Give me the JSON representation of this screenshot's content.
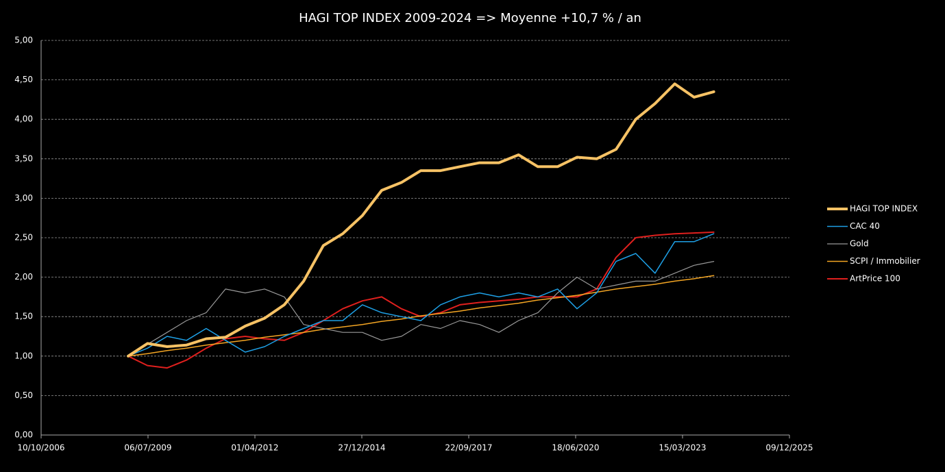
{
  "chart_data": {
    "type": "line",
    "title": "HAGI TOP INDEX 2009-2024 => Moyenne +10,7 % / an",
    "x": [
      "01/01/2009",
      "01/07/2009",
      "01/01/2010",
      "01/07/2010",
      "01/01/2011",
      "01/07/2011",
      "01/01/2012",
      "01/07/2012",
      "01/01/2013",
      "01/07/2013",
      "01/01/2014",
      "01/07/2014",
      "01/01/2015",
      "01/07/2015",
      "01/01/2016",
      "01/07/2016",
      "01/01/2017",
      "01/07/2017",
      "01/01/2018",
      "01/07/2018",
      "01/01/2019",
      "01/07/2019",
      "01/01/2020",
      "01/07/2020",
      "01/01/2021",
      "01/07/2021",
      "01/01/2022",
      "01/07/2022",
      "01/01/2023",
      "01/07/2023",
      "01/01/2024"
    ],
    "series": [
      {
        "name": "HAGI TOP INDEX",
        "color": "#f6c265",
        "line_width": 4,
        "values": [
          1.0,
          1.16,
          1.12,
          1.14,
          1.22,
          1.24,
          1.38,
          1.48,
          1.65,
          1.95,
          2.4,
          2.55,
          2.78,
          3.1,
          3.2,
          3.35,
          3.35,
          3.4,
          3.45,
          3.45,
          3.55,
          3.4,
          3.4,
          3.52,
          3.5,
          3.62,
          4.0,
          4.2,
          4.45,
          4.28,
          4.35
        ]
      },
      {
        "name": "CAC 40",
        "color": "#1ea0e6",
        "line_width": 1.5,
        "values": [
          1.0,
          1.1,
          1.25,
          1.2,
          1.35,
          1.2,
          1.05,
          1.12,
          1.25,
          1.35,
          1.45,
          1.45,
          1.65,
          1.55,
          1.5,
          1.45,
          1.65,
          1.75,
          1.8,
          1.75,
          1.8,
          1.75,
          1.85,
          1.6,
          1.8,
          2.2,
          2.3,
          2.05,
          2.45,
          2.45,
          2.55
        ]
      },
      {
        "name": "Gold",
        "color": "#9a9a9a",
        "line_width": 1.2,
        "values": [
          1.0,
          1.15,
          1.3,
          1.45,
          1.55,
          1.85,
          1.8,
          1.85,
          1.75,
          1.4,
          1.35,
          1.3,
          1.3,
          1.2,
          1.25,
          1.4,
          1.35,
          1.45,
          1.4,
          1.3,
          1.45,
          1.55,
          1.8,
          2.0,
          1.85,
          1.9,
          1.95,
          1.95,
          2.05,
          2.15,
          2.2
        ]
      },
      {
        "name": "SCPI / Immobilier",
        "color": "#f5a623",
        "line_width": 1.5,
        "values": [
          1.0,
          1.03,
          1.07,
          1.1,
          1.14,
          1.17,
          1.2,
          1.24,
          1.27,
          1.3,
          1.34,
          1.37,
          1.4,
          1.44,
          1.47,
          1.51,
          1.54,
          1.57,
          1.61,
          1.64,
          1.67,
          1.71,
          1.74,
          1.77,
          1.81,
          1.85,
          1.88,
          1.91,
          1.95,
          1.98,
          2.02
        ]
      },
      {
        "name": "ArtPrice 100",
        "color": "#e0201e",
        "line_width": 2,
        "values": [
          1.0,
          0.88,
          0.85,
          0.95,
          1.1,
          1.22,
          1.25,
          1.22,
          1.2,
          1.3,
          1.45,
          1.6,
          1.7,
          1.75,
          1.6,
          1.5,
          1.55,
          1.65,
          1.68,
          1.7,
          1.72,
          1.75,
          1.75,
          1.75,
          1.85,
          2.25,
          2.5,
          2.53,
          2.55,
          2.56,
          2.57
        ]
      }
    ],
    "xlim": [
      "10/10/2006",
      "09/12/2025"
    ],
    "xticks": [
      "10/10/2006",
      "06/07/2009",
      "01/04/2012",
      "27/12/2014",
      "22/09/2017",
      "18/06/2020",
      "15/03/2023",
      "09/12/2025"
    ],
    "ylim": [
      0,
      5
    ],
    "yticks": [
      {
        "value": 0,
        "label": "0,00"
      },
      {
        "value": 0.5,
        "label": "0,50"
      },
      {
        "value": 1,
        "label": "1,00"
      },
      {
        "value": 1.5,
        "label": "1,50"
      },
      {
        "value": 2,
        "label": "2,00"
      },
      {
        "value": 2.5,
        "label": "2,50"
      },
      {
        "value": 3,
        "label": "3,00"
      },
      {
        "value": 3.5,
        "label": "3,50"
      },
      {
        "value": 4,
        "label": "4,00"
      },
      {
        "value": 4.5,
        "label": "4,50"
      },
      {
        "value": 5,
        "label": "5,00"
      }
    ],
    "grid": true,
    "legend": "right"
  }
}
